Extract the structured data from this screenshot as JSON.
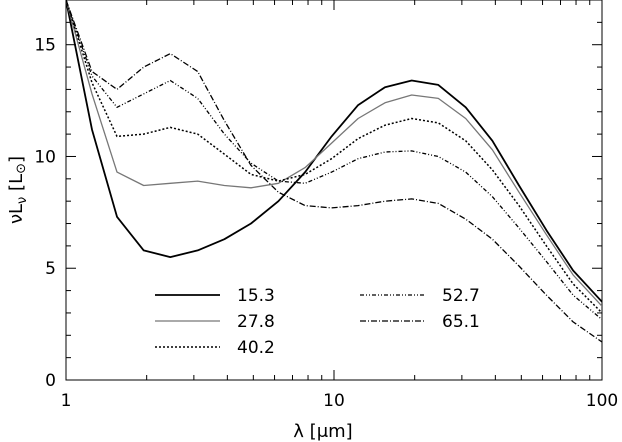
{
  "chart_data": {
    "type": "line",
    "xlabel": "λ [μm]",
    "ylabel": "νL",
    "ylabel_subscript": "ν",
    "ylabel_unit": "[L",
    "ylabel_unit_symbol": "⊙",
    "ylabel_unit_close": "]",
    "xscale": "log",
    "xlim": [
      1,
      100
    ],
    "ylim": [
      0,
      17
    ],
    "xticks": [
      {
        "value": 1,
        "label": "1"
      },
      {
        "value": 10,
        "label": "10"
      },
      {
        "value": 100,
        "label": "100"
      }
    ],
    "yticks": [
      {
        "value": 0,
        "label": "0"
      },
      {
        "value": 5,
        "label": "5"
      },
      {
        "value": 10,
        "label": "10"
      },
      {
        "value": 15,
        "label": "15"
      }
    ],
    "grid": false,
    "legend_position": "bottom-center",
    "series": [
      {
        "name": "15.3",
        "color": "#000000",
        "dash": "none",
        "width": 1.8,
        "x": [
          1,
          1.25,
          1.55,
          1.95,
          2.45,
          3.1,
          3.9,
          4.9,
          6.2,
          7.8,
          9.8,
          12.3,
          15.5,
          19.5,
          24.5,
          31,
          39,
          49,
          62,
          78,
          100
        ],
        "y": [
          17,
          11.2,
          7.3,
          5.8,
          5.5,
          5.8,
          6.3,
          7.0,
          8.0,
          9.3,
          10.9,
          12.3,
          13.1,
          13.4,
          13.2,
          12.2,
          10.7,
          8.7,
          6.7,
          4.9,
          3.5
        ]
      },
      {
        "name": "27.8",
        "color": "#777777",
        "dash": "none",
        "width": 1.3,
        "x": [
          1,
          1.25,
          1.55,
          1.95,
          2.45,
          3.1,
          3.9,
          4.9,
          6.2,
          7.8,
          9.8,
          12.3,
          15.5,
          19.5,
          24.5,
          31,
          39,
          49,
          62,
          78,
          100
        ],
        "y": [
          17,
          12.8,
          9.3,
          8.7,
          8.8,
          8.9,
          8.7,
          8.6,
          8.8,
          9.5,
          10.6,
          11.7,
          12.4,
          12.75,
          12.6,
          11.7,
          10.3,
          8.4,
          6.5,
          4.7,
          3.3
        ]
      },
      {
        "name": "40.2",
        "color": "#000000",
        "dash": "2,2",
        "width": 1.5,
        "x": [
          1,
          1.25,
          1.55,
          1.95,
          2.45,
          3.1,
          3.9,
          4.9,
          6.2,
          7.8,
          9.8,
          12.3,
          15.5,
          19.5,
          24.5,
          31,
          39,
          49,
          62,
          78,
          100
        ],
        "y": [
          17,
          13.3,
          10.9,
          11.0,
          11.3,
          11.0,
          10.1,
          9.2,
          8.9,
          9.2,
          9.9,
          10.8,
          11.4,
          11.7,
          11.5,
          10.7,
          9.4,
          7.8,
          6.0,
          4.3,
          3.0
        ]
      },
      {
        "name": "52.7",
        "color": "#000000",
        "dash": "4,2,1,2,1,2",
        "width": 1.3,
        "x": [
          1,
          1.25,
          1.55,
          1.95,
          2.45,
          3.1,
          3.9,
          4.9,
          6.2,
          7.8,
          9.8,
          12.3,
          15.5,
          19.5,
          24.5,
          31,
          39,
          49,
          62,
          78,
          100
        ],
        "y": [
          17,
          13.6,
          12.2,
          12.8,
          13.4,
          12.6,
          11.0,
          9.7,
          8.9,
          8.8,
          9.3,
          9.9,
          10.2,
          10.25,
          10.0,
          9.3,
          8.2,
          6.8,
          5.3,
          3.8,
          2.7
        ]
      },
      {
        "name": "65.1",
        "color": "#000000",
        "dash": "6,2,1,2",
        "width": 1.3,
        "x": [
          1,
          1.25,
          1.55,
          1.95,
          2.45,
          3.1,
          3.9,
          4.9,
          6.2,
          7.8,
          9.8,
          12.3,
          15.5,
          19.5,
          24.5,
          31,
          39,
          49,
          62,
          78,
          100
        ],
        "y": [
          17,
          13.8,
          13.0,
          14.0,
          14.6,
          13.8,
          11.6,
          9.6,
          8.4,
          7.8,
          7.7,
          7.8,
          8.0,
          8.1,
          7.9,
          7.2,
          6.3,
          5.1,
          3.8,
          2.6,
          1.7
        ]
      }
    ]
  }
}
